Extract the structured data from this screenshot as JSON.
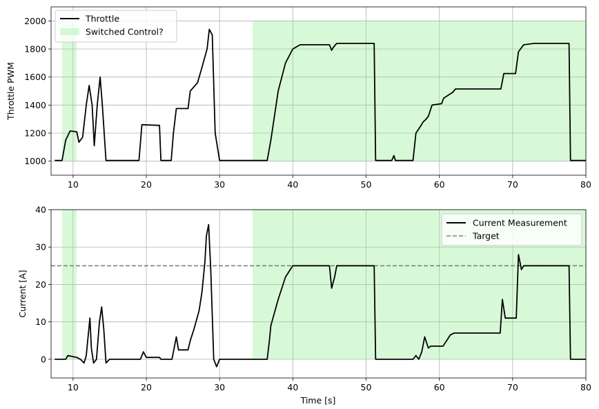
{
  "colors": {
    "shade": "#90ee90",
    "shade_opacity": 0.35,
    "line": "#000000",
    "target": "#808080"
  },
  "chart_data": [
    {
      "type": "line",
      "ylabel": "Throttle PWM",
      "xlabel": "",
      "xlim": [
        7,
        80
      ],
      "ylim": [
        900,
        2100
      ],
      "xticks": [
        10,
        20,
        30,
        40,
        50,
        60,
        70,
        80
      ],
      "yticks": [
        1000,
        1200,
        1400,
        1600,
        1800,
        2000
      ],
      "grid": true,
      "legend_position": "upper-left",
      "shaded_regions": {
        "name": "Switched Control?",
        "y_range": [
          1000,
          2000
        ],
        "intervals": [
          [
            8.5,
            10.5
          ],
          [
            34.5,
            80
          ]
        ]
      },
      "series": [
        {
          "name": "Throttle",
          "x": [
            7.5,
            8.5,
            9.0,
            9.6,
            10.5,
            10.8,
            11.3,
            11.8,
            12.2,
            12.6,
            12.9,
            13.3,
            13.7,
            14.0,
            14.5,
            15.0,
            15.5,
            16,
            19.0,
            19.4,
            21.8,
            22.0,
            23.4,
            23.7,
            24.1,
            25.7,
            26.0,
            27.0,
            27.5,
            28.3,
            28.6,
            29.0,
            29.4,
            30,
            36.0,
            36.5,
            37,
            38,
            39,
            40,
            41,
            42,
            45,
            45.3,
            45.5,
            46,
            47,
            51.1,
            51.3,
            53.5,
            53.8,
            54.0,
            56.4,
            56.8,
            57.2,
            57.8,
            58.2,
            58.5,
            59.0,
            60.3,
            60.6,
            61.8,
            62.2,
            62.5,
            67.0,
            68.4,
            68.8,
            70.4,
            70.8,
            71.5,
            73,
            77.7,
            77.9,
            80
          ],
          "values": [
            1005,
            1005,
            1150,
            1215,
            1210,
            1135,
            1170,
            1400,
            1540,
            1400,
            1110,
            1400,
            1600,
            1400,
            1005,
            1005,
            1005,
            1005,
            1005,
            1260,
            1255,
            1005,
            1005,
            1200,
            1375,
            1375,
            1500,
            1560,
            1650,
            1800,
            1940,
            1900,
            1200,
            1005,
            1005,
            1005,
            1150,
            1500,
            1700,
            1800,
            1830,
            1830,
            1830,
            1790,
            1810,
            1840,
            1840,
            1840,
            1005,
            1005,
            1040,
            1005,
            1005,
            1200,
            1230,
            1280,
            1300,
            1320,
            1400,
            1410,
            1450,
            1490,
            1515,
            1515,
            1515,
            1515,
            1625,
            1625,
            1780,
            1830,
            1840,
            1840,
            1005,
            1005
          ]
        }
      ]
    },
    {
      "type": "line",
      "ylabel": "Current [A]",
      "xlabel": "Time [s]",
      "xlim": [
        7,
        80
      ],
      "ylim": [
        -5,
        40
      ],
      "xticks": [
        10,
        20,
        30,
        40,
        50,
        60,
        70,
        80
      ],
      "yticks": [
        0,
        10,
        20,
        30,
        40
      ],
      "grid": true,
      "legend_position": "upper-right",
      "shaded_regions": {
        "y_range": [
          0,
          40
        ],
        "intervals": [
          [
            8.5,
            10.5
          ],
          [
            34.5,
            80
          ]
        ]
      },
      "target": {
        "name": "Target",
        "value": 25
      },
      "series": [
        {
          "name": "Current Measurement",
          "x": [
            7.5,
            9.0,
            9.3,
            10.5,
            11.0,
            11.5,
            11.8,
            12.0,
            12.3,
            12.5,
            12.8,
            13.2,
            13.6,
            13.9,
            14.2,
            14.5,
            15,
            19.2,
            19.6,
            20.0,
            21.8,
            22.0,
            23.5,
            23.8,
            24.1,
            24.4,
            25.7,
            26.0,
            26.5,
            27.2,
            27.6,
            28.0,
            28.2,
            28.5,
            28.8,
            29.2,
            29.6,
            30,
            34.5,
            36.5,
            36.8,
            37.0,
            38.0,
            39.0,
            40,
            41,
            45,
            45.3,
            45.7,
            46.0,
            47,
            51.1,
            51.3,
            56.4,
            56.8,
            57.2,
            57.6,
            58.0,
            58.5,
            58.8,
            60.5,
            61,
            61.5,
            62,
            62.5,
            68.3,
            68.6,
            69.0,
            70.5,
            70.8,
            71.2,
            71.5,
            73,
            77.7,
            77.9,
            80
          ],
          "values": [
            0,
            0,
            1,
            0.5,
            0,
            -1,
            1,
            5,
            11,
            3,
            -1,
            0,
            10,
            14,
            8,
            -1,
            0,
            0,
            2,
            0.5,
            0.5,
            0,
            0,
            3,
            6,
            2.5,
            2.5,
            5,
            8,
            13,
            18,
            26,
            33,
            36,
            24,
            0,
            -2,
            0,
            0,
            0,
            5,
            9,
            16,
            22,
            25,
            25,
            25,
            19,
            22,
            25,
            25,
            25,
            0,
            0,
            1,
            0,
            2,
            6,
            3,
            3.5,
            3.5,
            5,
            6.5,
            7,
            7,
            7,
            16,
            11,
            11,
            28,
            24,
            25,
            25,
            25,
            0,
            0
          ]
        }
      ]
    }
  ]
}
